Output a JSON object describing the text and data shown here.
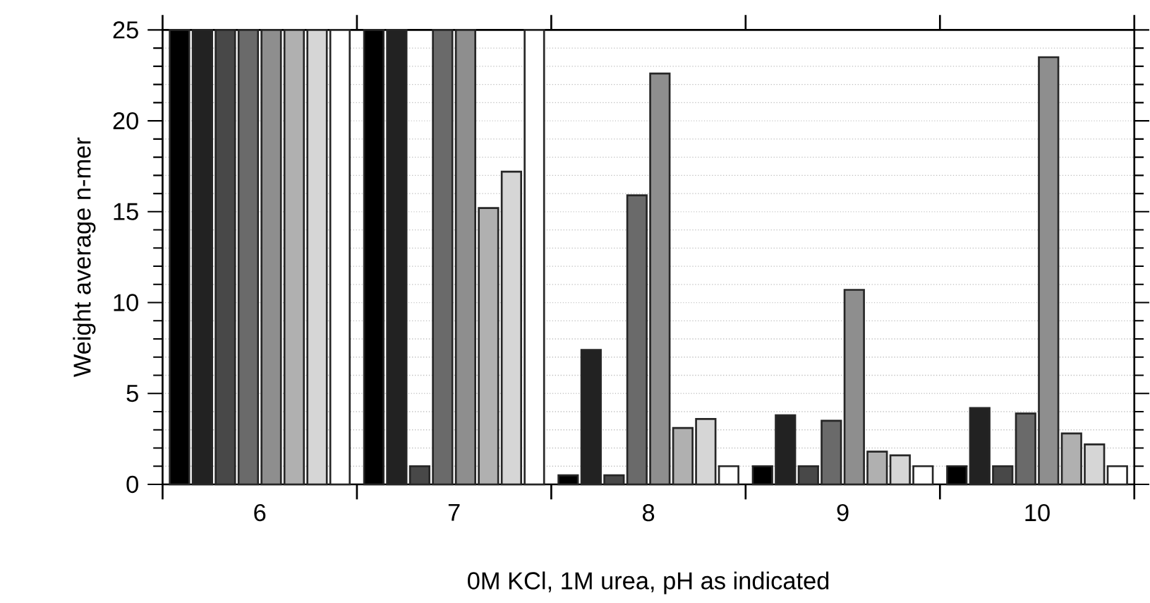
{
  "chart_data": {
    "type": "bar",
    "xlabel": "0M KCl, 1M urea, pH as indicated",
    "ylabel": "Weight average n-mer",
    "categories": [
      "6",
      "7",
      "8",
      "9",
      "10"
    ],
    "series": [
      {
        "color": "#000000",
        "values": [
          25,
          25,
          0.5,
          1,
          1
        ]
      },
      {
        "color": "#222222",
        "values": [
          25,
          25,
          7.4,
          3.8,
          4.2
        ]
      },
      {
        "color": "#484848",
        "values": [
          25,
          1,
          0.5,
          1,
          1
        ]
      },
      {
        "color": "#6a6a6a",
        "values": [
          25,
          25,
          15.9,
          3.5,
          3.9
        ]
      },
      {
        "color": "#8e8e8e",
        "values": [
          25,
          25,
          22.6,
          10.7,
          23.5
        ]
      },
      {
        "color": "#b0b0b0",
        "values": [
          25,
          15.2,
          3.1,
          1.8,
          2.8
        ]
      },
      {
        "color": "#d6d6d6",
        "values": [
          25,
          17.2,
          3.6,
          1.6,
          2.2
        ]
      },
      {
        "color": "#ffffff",
        "values": [
          25,
          25,
          1,
          1,
          1
        ]
      }
    ],
    "ylim": [
      0,
      25
    ],
    "yticks": [
      0,
      5,
      10,
      15,
      20,
      25
    ],
    "grid": "y"
  }
}
